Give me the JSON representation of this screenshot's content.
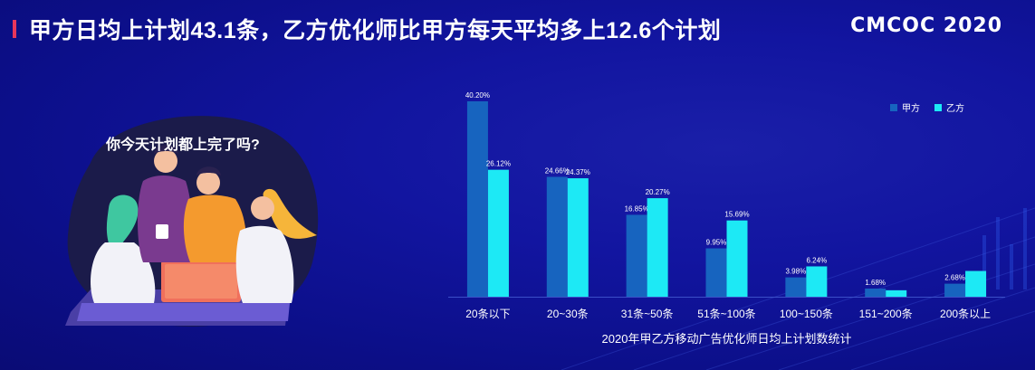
{
  "header": {
    "title": "甲方日均上计划43.1条，乙方优化师比甲方每天平均多上12.6个计划",
    "logo_text": "CMCOC 2020"
  },
  "illustration": {
    "speech_text": "你今天计划都上完了吗?"
  },
  "colors": {
    "series_a": "#1764bf",
    "series_b": "#1de9f5",
    "accent": "#e8365c"
  },
  "chart_data": {
    "type": "bar",
    "title": "2020年甲乙方移动广告优化师日均上计划数统计",
    "categories": [
      "20条以下",
      "20~30条",
      "31条~50条",
      "51条~100条",
      "100~150条",
      "151~200条",
      "200条以上"
    ],
    "series": [
      {
        "name": "甲方",
        "values": [
          40.2,
          24.66,
          16.85,
          9.95,
          3.98,
          1.68,
          2.68
        ],
        "labels": [
          "40.20%",
          "24.66%",
          "16.85%",
          "9.95%",
          "3.98%",
          "1.68%",
          "2.68%"
        ]
      },
      {
        "name": "乙方",
        "values": [
          26.12,
          24.37,
          20.27,
          15.69,
          6.24,
          1.33,
          5.3
        ],
        "labels": [
          "26.12%",
          "24.37%",
          "20.27%",
          "15.69%",
          "6.24%",
          "",
          ""
        ]
      }
    ],
    "ylim": [
      0,
      42
    ],
    "legend_position": "top-right",
    "grid": false
  }
}
